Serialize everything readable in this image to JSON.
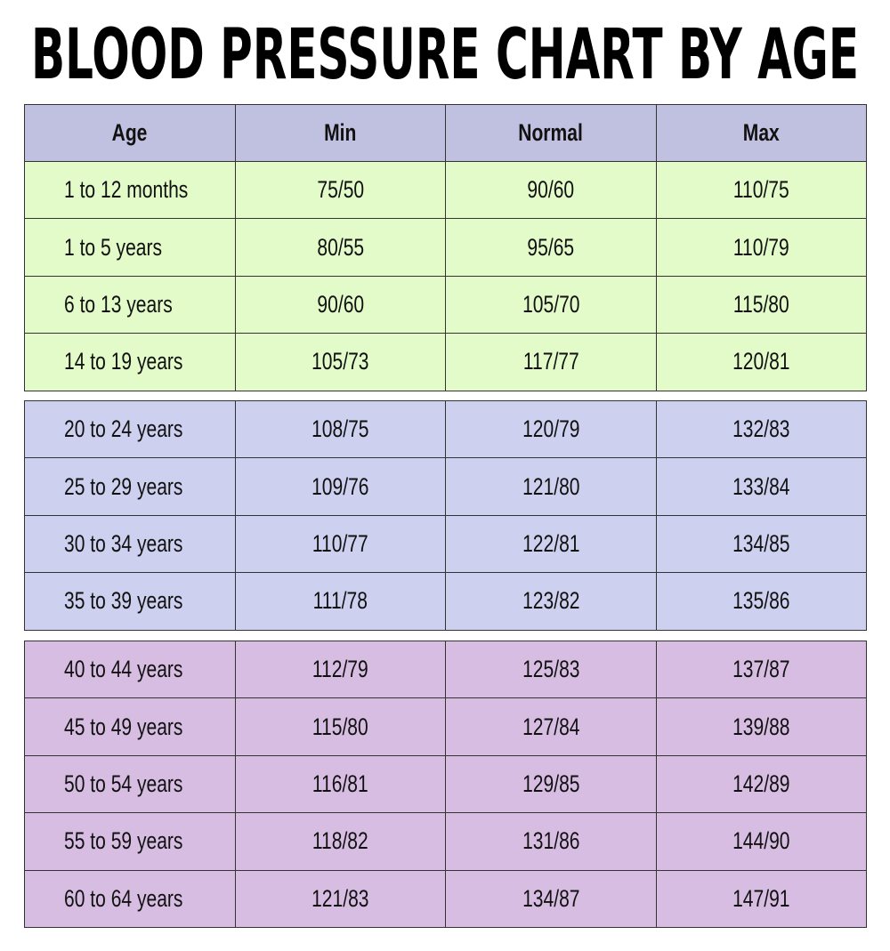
{
  "title": "BLOOD PRESSURE CHART BY AGE",
  "table": {
    "header": [
      "Age",
      "Min",
      "Normal",
      "Max"
    ],
    "groups": [
      {
        "rows": [
          [
            "1 to 12 months",
            "75/50",
            "90/60",
            "110/75"
          ],
          [
            "1 to 5 years",
            "80/55",
            "95/65",
            "110/79"
          ],
          [
            "6 to 13 years",
            "90/60",
            "105/70",
            "115/80"
          ],
          [
            "14 to 19 years",
            "105/73",
            "117/77",
            "120/81"
          ]
        ]
      },
      {
        "rows": [
          [
            "20 to 24 years",
            "108/75",
            "120/79",
            "132/83"
          ],
          [
            "25 to 29 years",
            "109/76",
            "121/80",
            "133/84"
          ],
          [
            "30 to 34 years",
            "110/77",
            "122/81",
            "134/85"
          ],
          [
            "35 to 39 years",
            "111/78",
            "123/82",
            "135/86"
          ]
        ]
      },
      {
        "rows": [
          [
            "40 to 44 years",
            "112/79",
            "125/83",
            "137/87"
          ],
          [
            "45 to 49 years",
            "115/80",
            "127/84",
            "139/88"
          ],
          [
            "50 to 54 years",
            "116/81",
            "129/85",
            "142/89"
          ],
          [
            "55 to 59 years",
            "118/82",
            "131/86",
            "144/90"
          ],
          [
            "60 to 64 years",
            "121/83",
            "134/87",
            "147/91"
          ]
        ]
      }
    ]
  }
}
